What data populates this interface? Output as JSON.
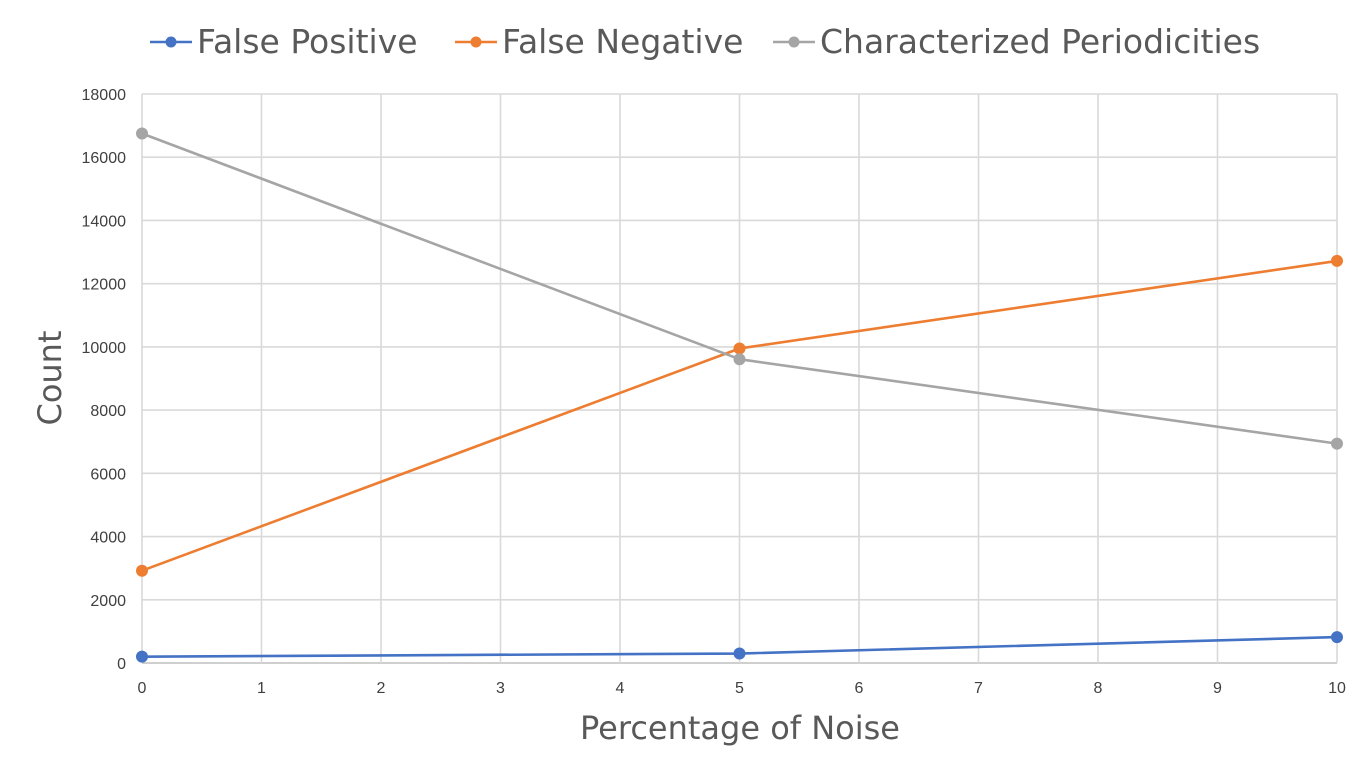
{
  "chart_data": {
    "type": "line",
    "title": "",
    "xlabel": "Percentage of Noise",
    "ylabel": "Count",
    "x_ticks": [
      0,
      1,
      2,
      3,
      4,
      5,
      6,
      7,
      8,
      9,
      10
    ],
    "y_ticks": [
      0,
      2000,
      4000,
      6000,
      8000,
      10000,
      12000,
      14000,
      16000,
      18000
    ],
    "xlim": [
      0,
      10
    ],
    "ylim": [
      0,
      18000
    ],
    "grid": true,
    "legend_position": "top",
    "series": [
      {
        "name": "False Positive",
        "color": "#4472c4",
        "points": [
          {
            "x": 0,
            "y": 200
          },
          {
            "x": 5,
            "y": 300
          },
          {
            "x": 10,
            "y": 820
          }
        ]
      },
      {
        "name": "False Negative",
        "color": "#ed7d31",
        "points": [
          {
            "x": 0,
            "y": 2920
          },
          {
            "x": 5,
            "y": 9950
          },
          {
            "x": 10,
            "y": 12720
          }
        ]
      },
      {
        "name": "Characterized Periodicities",
        "color": "#a5a5a5",
        "points": [
          {
            "x": 0,
            "y": 16750
          },
          {
            "x": 5,
            "y": 9610
          },
          {
            "x": 10,
            "y": 6940
          }
        ]
      }
    ]
  }
}
